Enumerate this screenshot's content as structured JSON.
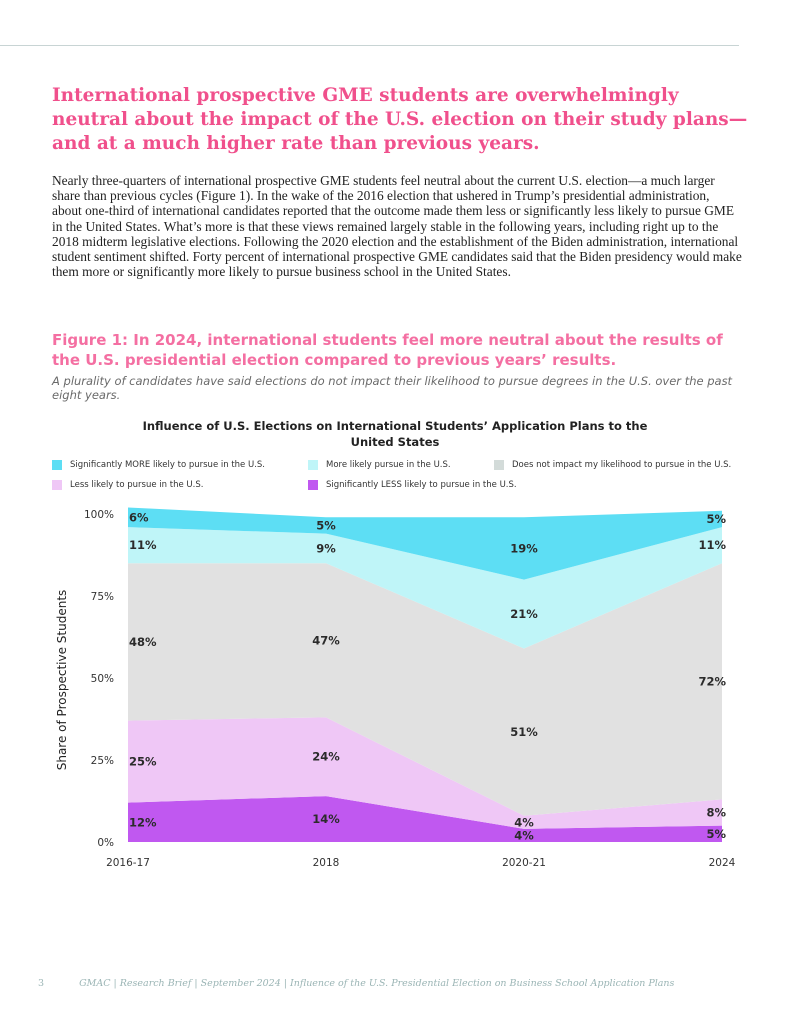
{
  "headline": "International prospective GME students are overwhelmingly neutral about the impact of the U.S. election on their study plans—and at a much higher rate than previous years.",
  "body": "Nearly three-quarters of international prospective GME students feel neutral about the current U.S. election—a much larger share than previous cycles (Figure 1). In the wake of the 2016 election that ushered in Trump’s presidential administration, about one-third of international candidates reported that the outcome made them less or significantly less likely to pursue GME in the United States. What’s more is that these views remained largely stable in the following years, including right up to the 2018 midterm legislative elections. Following the 2020 election and the establishment of the Biden administration, international student sentiment shifted. Forty percent of international prospective GME candidates said that the Biden presidency would make them more or significantly more likely to pursue business school in the United States.",
  "figure": {
    "title": "Figure 1: In 2024, international students feel more neutral about the results of the U.S. presidential election compared to previous years’ results.",
    "subtitle": "A plurality of candidates have said elections do not impact their likelihood to pursue degrees in the U.S. over the past eight years."
  },
  "colors": {
    "sig_more": "#5ddef4",
    "more": "#bff5f8",
    "neutral": "#e1e1e1",
    "less": "#efc7f6",
    "sig_less": "#c058f0"
  },
  "chart_data": {
    "type": "area",
    "stacked": true,
    "title": "Influence of U.S. Elections on International Students’ Application Plans to the United States",
    "ylabel": "Share of Prospective Students",
    "ylim": [
      0,
      100
    ],
    "yticks": [
      "0%",
      "25%",
      "50%",
      "75%",
      "100%"
    ],
    "categories": [
      "2016-17",
      "2018",
      "2020-21",
      "2024"
    ],
    "series": [
      {
        "key": "sig_less",
        "name": "Significantly LESS likely to pursue in the U.S.",
        "values": [
          12,
          14,
          4,
          5
        ],
        "labels": [
          "12%",
          "14%",
          "4%",
          "5%"
        ]
      },
      {
        "key": "less",
        "name": "Less likely to pursue in the U.S.",
        "values": [
          25,
          24,
          4,
          8
        ],
        "labels": [
          "25%",
          "24%",
          "4%",
          "8%"
        ]
      },
      {
        "key": "neutral",
        "name": "Does not impact my likelihood to pursue in the U.S.",
        "values": [
          48,
          47,
          51,
          72
        ],
        "labels": [
          "48%",
          "47%",
          "51%",
          "72%"
        ]
      },
      {
        "key": "more",
        "name": "More likely pursue in the U.S.",
        "values": [
          11,
          9,
          21,
          11
        ],
        "labels": [
          "11%",
          "9%",
          "21%",
          "11%"
        ]
      },
      {
        "key": "sig_more",
        "name": "Significantly MORE likely to pursue in the U.S.",
        "values": [
          6,
          5,
          19,
          5
        ],
        "labels": [
          "6%",
          "5%",
          "19%",
          "5%"
        ]
      }
    ],
    "legend_order": [
      "sig_more",
      "more",
      "neutral",
      "less",
      "sig_less"
    ]
  },
  "footer": {
    "page_number": "3",
    "text": "GMAC | Research Brief | September 2024 | Influence of the U.S. Presidential Election on Business School Application Plans"
  }
}
